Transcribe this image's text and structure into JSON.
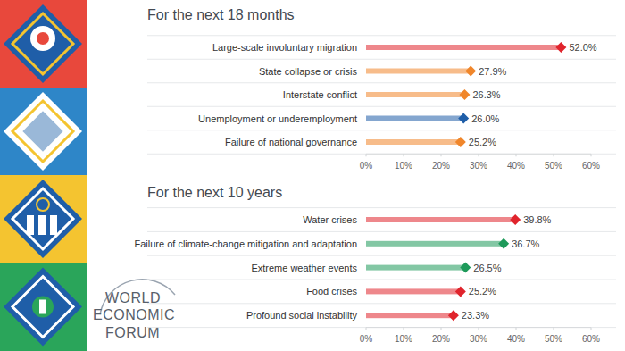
{
  "chart_data": [
    {
      "type": "bar",
      "orientation": "horizontal",
      "title": "For the next 18 months",
      "categories": [
        "Large-scale involuntary migration",
        "State collapse or crisis",
        "Interstate conflict",
        "Unemployment or underemployment",
        "Failure of national governance"
      ],
      "values": [
        52.0,
        27.9,
        26.3,
        26.0,
        25.2
      ],
      "value_labels": [
        "52.0%",
        "27.9%",
        "26.3%",
        "26.0%",
        "25.2%"
      ],
      "colors": [
        "#e0242c",
        "#f0862a",
        "#f0862a",
        "#1f5ea8",
        "#f0862a"
      ],
      "data_labels": true,
      "grid": false,
      "xlim": [
        0,
        60
      ],
      "xticks": [
        {
          "value": 0,
          "label": "0%"
        },
        {
          "value": 10,
          "label": "10%"
        },
        {
          "value": 20,
          "label": "20%"
        },
        {
          "value": 30,
          "label": "30%"
        },
        {
          "value": 40,
          "label": "40%"
        },
        {
          "value": 50,
          "label": "50%"
        },
        {
          "value": 60,
          "label": "60%"
        }
      ]
    },
    {
      "type": "bar",
      "orientation": "horizontal",
      "title": "For the next 10 years",
      "categories": [
        "Water crises",
        "Failure of climate-change mitigation and adaptation",
        "Extreme weather events",
        "Food crises",
        "Profound social instability"
      ],
      "values": [
        39.8,
        36.7,
        26.5,
        25.2,
        23.3
      ],
      "value_labels": [
        "39.8%",
        "36.7%",
        "26.5%",
        "25.2%",
        "23.3%"
      ],
      "colors": [
        "#e0242c",
        "#1e9a5a",
        "#1e9a5a",
        "#e0242c",
        "#e0242c"
      ],
      "data_labels": true,
      "grid": false,
      "xlim": [
        0,
        60
      ],
      "xticks": [
        {
          "value": 0,
          "label": "0%"
        },
        {
          "value": 10,
          "label": "10%"
        },
        {
          "value": 20,
          "label": "20%"
        },
        {
          "value": 30,
          "label": "30%"
        },
        {
          "value": 40,
          "label": "40%"
        },
        {
          "value": 50,
          "label": "50%"
        },
        {
          "value": 60,
          "label": "60%"
        }
      ]
    }
  ],
  "logo": {
    "lines": [
      "WORLD",
      "ECONOMIC",
      "FORUM"
    ]
  }
}
